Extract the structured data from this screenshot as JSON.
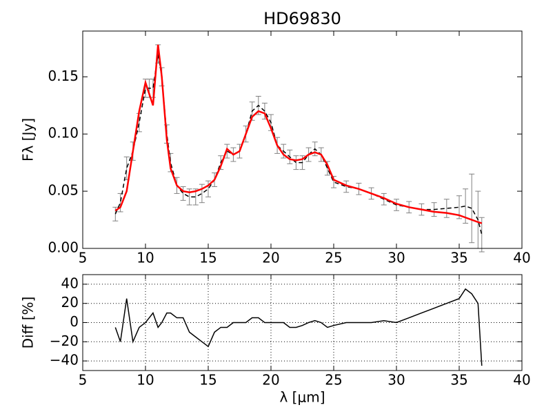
{
  "chart_data": [
    {
      "type": "line",
      "title": "HD69830",
      "ylabel": "Fλ [Jy]",
      "x": [
        7.6,
        8.0,
        8.5,
        9.0,
        9.5,
        10.0,
        10.3,
        10.6,
        11.0,
        11.3,
        11.7,
        12.0,
        12.5,
        13.0,
        13.5,
        14.0,
        14.5,
        15.0,
        15.5,
        16.0,
        16.5,
        17.0,
        17.5,
        18.0,
        18.5,
        19.0,
        19.5,
        20.0,
        20.5,
        21.0,
        21.5,
        22.0,
        22.5,
        23.0,
        23.5,
        24.0,
        24.5,
        25.0,
        26,
        27,
        28,
        29,
        30,
        31,
        32,
        33,
        34,
        35,
        35.5,
        36,
        36.5,
        36.8
      ],
      "series": [
        {
          "color": "#000000",
          "linestyle": "dashed",
          "error_color": "#808080",
          "values": [
            0.03,
            0.04,
            0.07,
            0.085,
            0.11,
            0.14,
            0.14,
            0.14,
            0.17,
            0.15,
            0.1,
            0.075,
            0.055,
            0.048,
            0.045,
            0.045,
            0.048,
            0.052,
            0.06,
            0.075,
            0.085,
            0.082,
            0.085,
            0.1,
            0.12,
            0.125,
            0.12,
            0.11,
            0.09,
            0.085,
            0.08,
            0.075,
            0.075,
            0.082,
            0.087,
            0.082,
            0.07,
            0.058,
            0.054,
            0.052,
            0.048,
            0.043,
            0.038,
            0.036,
            0.034,
            0.034,
            0.035,
            0.036,
            0.037,
            0.035,
            0.025,
            0.012
          ],
          "errors": [
            0.006,
            0.008,
            0.01,
            0.008,
            0.008,
            0.008,
            0.008,
            0.008,
            0.008,
            0.008,
            0.008,
            0.008,
            0.007,
            0.006,
            0.007,
            0.007,
            0.008,
            0.007,
            0.006,
            0.006,
            0.006,
            0.006,
            0.006,
            0.007,
            0.008,
            0.008,
            0.007,
            0.007,
            0.007,
            0.006,
            0.006,
            0.006,
            0.006,
            0.006,
            0.006,
            0.006,
            0.006,
            0.005,
            0.005,
            0.005,
            0.005,
            0.005,
            0.005,
            0.005,
            0.005,
            0.006,
            0.008,
            0.01,
            0.015,
            0.03,
            0.025,
            0.015
          ]
        },
        {
          "color": "#ff0000",
          "linestyle": "solid",
          "values": [
            0.033,
            0.036,
            0.05,
            0.085,
            0.12,
            0.145,
            0.135,
            0.125,
            0.178,
            0.15,
            0.095,
            0.07,
            0.055,
            0.05,
            0.049,
            0.05,
            0.052,
            0.055,
            0.06,
            0.072,
            0.087,
            0.082,
            0.085,
            0.1,
            0.115,
            0.12,
            0.118,
            0.105,
            0.09,
            0.082,
            0.078,
            0.077,
            0.078,
            0.082,
            0.084,
            0.082,
            0.073,
            0.06,
            0.055,
            0.052,
            0.048,
            0.044,
            0.039,
            0.036,
            0.034,
            0.032,
            0.031,
            0.029,
            0.027,
            0.025,
            0.023,
            0.022
          ]
        }
      ],
      "xlim": [
        5,
        40
      ],
      "xticks": [
        5,
        10,
        15,
        20,
        25,
        30,
        35,
        40
      ],
      "ylim": [
        0,
        0.19
      ],
      "yticks": [
        {
          "value": 0,
          "label": "0.00"
        },
        {
          "value": 0.05,
          "label": "0.05"
        },
        {
          "value": 0.1,
          "label": "0.10"
        },
        {
          "value": 0.15,
          "label": "0.15"
        }
      ],
      "grid": false
    },
    {
      "type": "line",
      "xlabel": "λ [μm]",
      "ylabel": "Diff [%]",
      "x": [
        7.6,
        8.0,
        8.5,
        9.0,
        9.5,
        10.0,
        10.3,
        10.6,
        11.0,
        11.3,
        11.7,
        12.0,
        12.5,
        13.0,
        13.5,
        14.0,
        14.5,
        15.0,
        15.5,
        16.0,
        16.5,
        17.0,
        17.5,
        18.0,
        18.5,
        19.0,
        19.5,
        20.0,
        20.5,
        21.0,
        21.5,
        22.0,
        22.5,
        23.0,
        23.5,
        24.0,
        24.5,
        25.0,
        26,
        27,
        28,
        29,
        30,
        31,
        32,
        33,
        34,
        35,
        35.5,
        36,
        36.5,
        36.8
      ],
      "series": [
        {
          "color": "#000000",
          "linestyle": "solid",
          "values": [
            -5,
            -20,
            25,
            -20,
            -5,
            0,
            5,
            10,
            -5,
            0,
            10,
            10,
            5,
            5,
            -10,
            -15,
            -20,
            -25,
            -10,
            -5,
            -5,
            0,
            0,
            0,
            5,
            5,
            0,
            0,
            0,
            0,
            -5,
            -5,
            -3,
            0,
            2,
            0,
            -5,
            -3,
            0,
            0,
            0,
            2,
            0,
            5,
            10,
            15,
            20,
            25,
            35,
            30,
            20,
            -45
          ]
        }
      ],
      "xlim": [
        5,
        40
      ],
      "xticks": [
        5,
        10,
        15,
        20,
        25,
        30,
        35,
        40
      ],
      "ylim": [
        -50,
        50
      ],
      "yticks": [
        {
          "value": -40,
          "label": "−40"
        },
        {
          "value": -20,
          "label": "−20"
        },
        0,
        20,
        40
      ],
      "grid": true
    }
  ]
}
